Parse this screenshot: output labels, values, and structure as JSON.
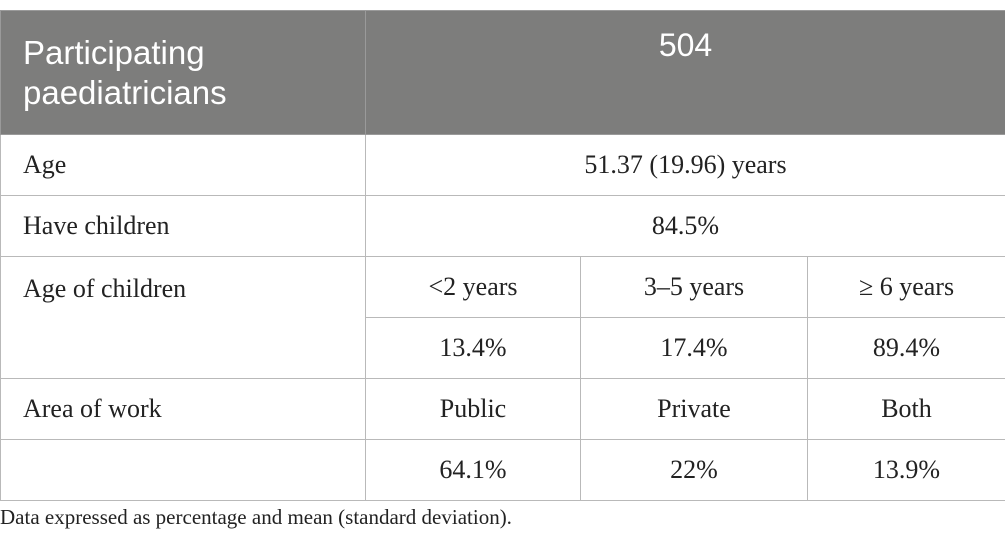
{
  "table": {
    "header": {
      "label_line1": "Participating",
      "label_line2": "paediatricians",
      "value": "504"
    },
    "rows": {
      "age": {
        "label": "Age",
        "value": "51.37 (19.96) years"
      },
      "have_children": {
        "label": "Have children",
        "value": "84.5%"
      },
      "age_of_children": {
        "label": "Age of children",
        "categories": [
          "<2 years",
          "3–5 years",
          "≥ 6 years"
        ],
        "values": [
          "13.4%",
          "17.4%",
          "89.4%"
        ]
      },
      "area_of_work": {
        "label": "Area of work",
        "categories": [
          "Public",
          "Private",
          "Both"
        ],
        "values": [
          "64.1%",
          "22%",
          "13.9%"
        ]
      }
    }
  },
  "footnote": "Data expressed as percentage and mean (standard deviation)."
}
